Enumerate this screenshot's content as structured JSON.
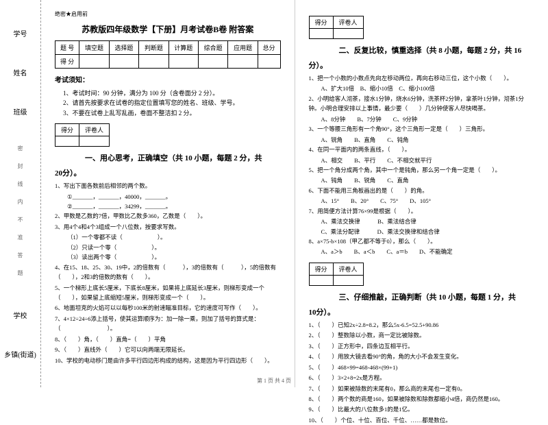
{
  "binding": {
    "fields": [
      "乡镇(街道)",
      "学校",
      "班级",
      "姓名",
      "学号"
    ],
    "sealText": "密 封 线 内 不 准 答 题"
  },
  "header": {
    "secret": "绝密★启用前",
    "title": "苏教版四年级数学【下册】月考试卷B卷 附答案"
  },
  "scoreTable": {
    "r1": [
      "题 号",
      "填空题",
      "选择题",
      "判断题",
      "计算题",
      "综合题",
      "应用题",
      "总分"
    ],
    "r2": [
      "得 分",
      "",
      "",
      "",
      "",
      "",
      "",
      ""
    ]
  },
  "noticeTitle": "考试须知：",
  "notices": [
    "1、考试时间：90 分钟，满分为 100 分（含卷面分 2 分）。",
    "2、请首先按要求在试卷的指定位置填写您的姓名、班级、学号。",
    "3、不要在试卷上乱写乱画，卷面不整洁扣 2 分。"
  ],
  "eval": {
    "c1": "得分",
    "c2": "评卷人"
  },
  "s1": {
    "title": "一、用心思考，正确填空（共 10 小题，每题 2 分，共",
    "tail": "20分）。",
    "q": [
      "1、写出下面各数前后相邻的两个数。",
      "2、甲数是乙数的7倍，甲数比乙数多360，乙数是（　　）。",
      "3、用4个4和4个3组成一个八位数，按要求写数。",
      "4、在15、18、25、30、19中，2的倍数有（　　　），3的倍数有（　　　），5的倍数有（　　），2和3的倍数的数有（　　）。",
      "5、一个梯形上底长5厘米，下底长8厘米，如果将上底延长3厘米，则梯形变成一个（　　），如果留上底缩短5厘米，则梯形变成一个（　　）。",
      "6、地面坦克的火焰可以以每秒100米的射速瞄准目标，它的速度可写作（　　）。",
      "7、4×12÷24÷6添上括号，使其运算顺序为：加一除一乘，则加了括号的算式是：（　　　　　　　　）。",
      "8、（　　）角，（　　）直角=（　　）平角",
      "9、（　　）直线外（　　）它可以向两端无限延长。",
      "10、学校的电动移门是由许多平行四边形构成的结构，这是因为平行四边形（　　）。"
    ],
    "sub1": [
      "①_______，_______，40000，_______。",
      "②_______，_______，34299，_______。"
    ],
    "sub3": [
      "（1）一个零都不读（　　　　　　）。",
      "（2）只读一个零（　　　　　　）。",
      "（3）读出两个零（　　　　　　）。"
    ]
  },
  "s2": {
    "title": "二、反复比较，慎重选择（共 8 小题，每题 2 分，共 16",
    "tail": "分）。",
    "q": [
      {
        "t": "1、把一个小数的小数点先向左移动两位，再向右移动三位，这个小数（　　）。",
        "o": "A、扩大10倍　B、缩小10倍　C、缩小100倍"
      },
      {
        "t": "2、小明给客人沏茶，接水1分钟，烧水6分钟，洗茶杯2分钟，拿茶叶1分钟，沏茶1分钟。小明合理安排以上事情，最少要（　　）几分钟使客人尽快喝茶。",
        "o": "A、8分钟　　B、7分钟　　C、9分钟"
      },
      {
        "t": "3、一个等腰三角形有一个角90°，这个三角形一定是（　　）三角形。",
        "o": "A、锐角　　B、直角　　C、钝角"
      },
      {
        "t": "4、在同一平面内的两条直线，（　　）。",
        "o": "A、相交　　B、平行　　C、不相交就平行"
      },
      {
        "t": "5、把一个角分成两个角，其中一个是钝角，那么另一个角一定是（　　）。",
        "o": "A、钝角　　B、锐角　　C、直角"
      },
      {
        "t": "6、下面不能用三角板画出的是（　　）的角。",
        "o": "A、15°　　B、20°　　C、75°　　D、105°"
      },
      {
        "t": "7、用简便方法计算76×99是根据（　　）。",
        "o": "A、乘法交换律　　　B、乘法结合律\nC、乘法分配律　　　D、乘法交换律和结合律"
      },
      {
        "t": "8、a×75-b×108（甲乙都不等于0），那么（　　）。",
        "o": "A、a＞b　　B、a＜b　　C、a＝b　　D、不能确定"
      }
    ]
  },
  "s3": {
    "title": "三、仔细推敲，正确判断（共 10 小题，每题 1 分，共",
    "tail": "10分）。",
    "q": [
      "1、（　　）已知2x÷2.8=8.2，那么5x-6.5=52.5+90.86",
      "2、（　　）整数除以小数，商一定比被除数。",
      "3、（　　）正方形中，四条边互相平行。",
      "4、（　　）用放大镜去看90°的角，角的大小不会发生变化。",
      "5、（　　）468×99=468-468×(99+1)",
      "6、（　　）3×2+8=2x是方程。",
      "7、（　　）如果被除数的末尾有0，那么商的末尾也一定有0。",
      "8、（　　）两个数的商是160，如果被除数和除数都缩小4倍，商仍然是160。",
      "9、（　　）比最大的八位数多1的是1亿。",
      "10、（　　）个位、十位、百位、千位、……都是数位。"
    ]
  },
  "footer": "第 1 页 共 4 页"
}
